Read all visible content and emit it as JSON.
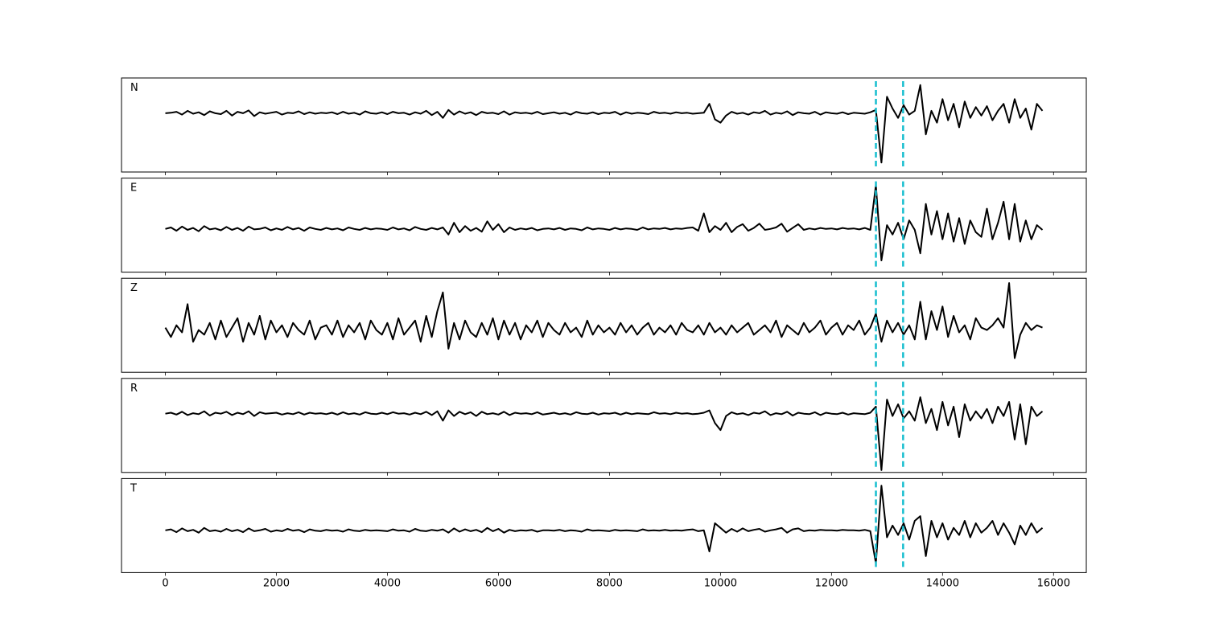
{
  "chart_data": {
    "type": "line",
    "x": [
      0,
      100,
      200,
      300,
      400,
      500,
      600,
      700,
      800,
      900,
      1000,
      1100,
      1200,
      1300,
      1400,
      1500,
      1600,
      1700,
      1800,
      1900,
      2000,
      2100,
      2200,
      2300,
      2400,
      2500,
      2600,
      2700,
      2800,
      2900,
      3000,
      3100,
      3200,
      3300,
      3400,
      3500,
      3600,
      3700,
      3800,
      3900,
      4000,
      4100,
      4200,
      4300,
      4400,
      4500,
      4600,
      4700,
      4800,
      4900,
      5000,
      5100,
      5200,
      5300,
      5400,
      5500,
      5600,
      5700,
      5800,
      5900,
      6000,
      6100,
      6200,
      6300,
      6400,
      6500,
      6600,
      6700,
      6800,
      6900,
      7000,
      7100,
      7200,
      7300,
      7400,
      7500,
      7600,
      7700,
      7800,
      7900,
      8000,
      8100,
      8200,
      8300,
      8400,
      8500,
      8600,
      8700,
      8800,
      8900,
      9000,
      9100,
      9200,
      9300,
      9400,
      9500,
      9600,
      9700,
      9800,
      9900,
      10000,
      10100,
      10200,
      10300,
      10400,
      10500,
      10600,
      10700,
      10800,
      10900,
      11000,
      11100,
      11200,
      11300,
      11400,
      11500,
      11600,
      11700,
      11800,
      11900,
      12000,
      12100,
      12200,
      12300,
      12400,
      12500,
      12600,
      12700,
      12800,
      12900,
      13000,
      13100,
      13200,
      13300,
      13400,
      13500,
      13600,
      13700,
      13800,
      13900,
      14000,
      14100,
      14200,
      14300,
      14400,
      14500,
      14600,
      14700,
      14800,
      14900,
      15000,
      15100,
      15200,
      15300,
      15400,
      15500,
      15600,
      15700,
      15800
    ],
    "series": [
      {
        "name": "N",
        "color": "#000000",
        "values": [
          0.25,
          0.26,
          0.28,
          0.22,
          0.3,
          0.24,
          0.27,
          0.21,
          0.29,
          0.25,
          0.23,
          0.3,
          0.2,
          0.28,
          0.25,
          0.31,
          0.19,
          0.27,
          0.24,
          0.26,
          0.28,
          0.22,
          0.26,
          0.25,
          0.29,
          0.23,
          0.27,
          0.24,
          0.26,
          0.25,
          0.27,
          0.23,
          0.28,
          0.24,
          0.26,
          0.22,
          0.29,
          0.25,
          0.24,
          0.27,
          0.23,
          0.28,
          0.25,
          0.26,
          0.22,
          0.27,
          0.24,
          0.3,
          0.21,
          0.28,
          0.15,
          0.32,
          0.22,
          0.29,
          0.24,
          0.27,
          0.21,
          0.28,
          0.25,
          0.26,
          0.23,
          0.29,
          0.22,
          0.27,
          0.25,
          0.26,
          0.24,
          0.28,
          0.23,
          0.25,
          0.27,
          0.24,
          0.26,
          0.22,
          0.28,
          0.25,
          0.24,
          0.27,
          0.23,
          0.26,
          0.25,
          0.28,
          0.22,
          0.27,
          0.24,
          0.26,
          0.25,
          0.23,
          0.28,
          0.25,
          0.26,
          0.24,
          0.27,
          0.25,
          0.26,
          0.24,
          0.25,
          0.26,
          0.45,
          0.12,
          0.05,
          0.2,
          0.28,
          0.24,
          0.26,
          0.22,
          0.27,
          0.25,
          0.3,
          0.22,
          0.26,
          0.24,
          0.29,
          0.21,
          0.27,
          0.25,
          0.24,
          0.28,
          0.22,
          0.27,
          0.25,
          0.24,
          0.27,
          0.23,
          0.26,
          0.25,
          0.24,
          0.27,
          0.32,
          -0.8,
          0.6,
          0.35,
          0.15,
          0.42,
          0.22,
          0.3,
          0.85,
          -0.2,
          0.3,
          0.05,
          0.55,
          0.1,
          0.45,
          -0.05,
          0.5,
          0.15,
          0.38,
          0.2,
          0.4,
          0.1,
          0.3,
          0.45,
          0.05,
          0.55,
          0.15,
          0.35,
          -0.1,
          0.45,
          0.3
        ]
      },
      {
        "name": "E",
        "color": "#000000",
        "values": [
          -0.08,
          -0.05,
          -0.12,
          -0.03,
          -0.1,
          -0.06,
          -0.13,
          -0.02,
          -0.09,
          -0.07,
          -0.11,
          -0.04,
          -0.1,
          -0.06,
          -0.12,
          -0.03,
          -0.09,
          -0.08,
          -0.05,
          -0.11,
          -0.07,
          -0.1,
          -0.04,
          -0.09,
          -0.06,
          -0.12,
          -0.05,
          -0.08,
          -0.1,
          -0.06,
          -0.09,
          -0.07,
          -0.11,
          -0.05,
          -0.08,
          -0.1,
          -0.06,
          -0.09,
          -0.07,
          -0.08,
          -0.1,
          -0.05,
          -0.09,
          -0.07,
          -0.11,
          -0.04,
          -0.08,
          -0.1,
          -0.06,
          -0.09,
          -0.05,
          -0.2,
          0.05,
          -0.15,
          -0.02,
          -0.12,
          -0.06,
          -0.14,
          0.08,
          -0.1,
          0.02,
          -0.15,
          -0.05,
          -0.1,
          -0.07,
          -0.09,
          -0.06,
          -0.11,
          -0.08,
          -0.07,
          -0.09,
          -0.06,
          -0.1,
          -0.07,
          -0.08,
          -0.11,
          -0.05,
          -0.09,
          -0.07,
          -0.08,
          -0.1,
          -0.06,
          -0.09,
          -0.07,
          -0.08,
          -0.1,
          -0.05,
          -0.09,
          -0.07,
          -0.08,
          -0.06,
          -0.09,
          -0.07,
          -0.08,
          -0.06,
          -0.05,
          -0.12,
          0.25,
          -0.15,
          -0.02,
          -0.1,
          0.05,
          -0.15,
          -0.04,
          0.02,
          -0.12,
          -0.06,
          0.03,
          -0.1,
          -0.08,
          -0.05,
          0.03,
          -0.14,
          -0.06,
          0.02,
          -0.1,
          -0.07,
          -0.09,
          -0.06,
          -0.08,
          -0.07,
          -0.09,
          -0.06,
          -0.08,
          -0.07,
          -0.09,
          -0.06,
          -0.1,
          0.85,
          -0.75,
          0.0,
          -0.2,
          0.05,
          -0.3,
          0.1,
          -0.1,
          -0.6,
          0.45,
          -0.2,
          0.3,
          -0.3,
          0.25,
          -0.35,
          0.15,
          -0.4,
          0.1,
          -0.15,
          -0.25,
          0.35,
          -0.3,
          0.05,
          0.5,
          -0.3,
          0.45,
          -0.35,
          0.1,
          -0.3,
          0.0,
          -0.1
        ]
      },
      {
        "name": "Z",
        "color": "#000000",
        "values": [
          -0.05,
          -0.25,
          0.0,
          -0.15,
          0.45,
          -0.35,
          -0.1,
          -0.2,
          0.05,
          -0.3,
          0.1,
          -0.25,
          -0.05,
          0.15,
          -0.35,
          0.05,
          -0.2,
          0.2,
          -0.3,
          0.1,
          -0.15,
          0.0,
          -0.25,
          0.05,
          -0.1,
          -0.2,
          0.1,
          -0.3,
          -0.05,
          0.0,
          -0.2,
          0.1,
          -0.25,
          0.0,
          -0.15,
          0.05,
          -0.3,
          0.1,
          -0.1,
          -0.2,
          0.05,
          -0.3,
          0.15,
          -0.2,
          -0.05,
          0.1,
          -0.35,
          0.2,
          -0.25,
          0.3,
          0.7,
          -0.5,
          0.05,
          -0.3,
          0.1,
          -0.15,
          -0.25,
          0.05,
          -0.2,
          0.15,
          -0.3,
          0.1,
          -0.2,
          0.05,
          -0.3,
          0.0,
          -0.15,
          0.1,
          -0.25,
          0.05,
          -0.1,
          -0.2,
          0.05,
          -0.15,
          -0.05,
          -0.25,
          0.1,
          -0.2,
          0.0,
          -0.15,
          -0.05,
          -0.2,
          0.05,
          -0.15,
          0.0,
          -0.2,
          -0.05,
          0.05,
          -0.2,
          -0.05,
          -0.15,
          0.0,
          -0.2,
          0.05,
          -0.1,
          -0.15,
          0.0,
          -0.2,
          0.05,
          -0.15,
          -0.05,
          -0.2,
          0.0,
          -0.15,
          -0.05,
          0.05,
          -0.2,
          -0.1,
          0.0,
          -0.15,
          0.1,
          -0.25,
          0.0,
          -0.1,
          -0.2,
          0.05,
          -0.15,
          -0.05,
          0.1,
          -0.2,
          -0.05,
          0.05,
          -0.2,
          0.0,
          -0.1,
          0.1,
          -0.2,
          -0.05,
          0.25,
          -0.35,
          0.1,
          -0.15,
          0.05,
          -0.2,
          0.0,
          -0.3,
          0.5,
          -0.3,
          0.3,
          -0.1,
          0.4,
          -0.25,
          0.2,
          -0.15,
          0.0,
          -0.3,
          0.15,
          -0.05,
          -0.1,
          0.0,
          0.15,
          -0.05,
          0.9,
          -0.7,
          -0.2,
          0.05,
          -0.1,
          0.0,
          -0.05
        ]
      },
      {
        "name": "R",
        "color": "#000000",
        "values": [
          0.25,
          0.27,
          0.23,
          0.29,
          0.22,
          0.26,
          0.24,
          0.3,
          0.21,
          0.27,
          0.25,
          0.29,
          0.22,
          0.27,
          0.24,
          0.3,
          0.2,
          0.28,
          0.25,
          0.26,
          0.27,
          0.23,
          0.26,
          0.24,
          0.28,
          0.23,
          0.27,
          0.25,
          0.26,
          0.24,
          0.27,
          0.23,
          0.28,
          0.24,
          0.26,
          0.23,
          0.28,
          0.25,
          0.24,
          0.27,
          0.24,
          0.28,
          0.25,
          0.26,
          0.23,
          0.27,
          0.24,
          0.29,
          0.22,
          0.3,
          0.1,
          0.32,
          0.2,
          0.29,
          0.24,
          0.28,
          0.2,
          0.29,
          0.24,
          0.26,
          0.23,
          0.29,
          0.22,
          0.27,
          0.25,
          0.26,
          0.24,
          0.28,
          0.23,
          0.25,
          0.27,
          0.24,
          0.26,
          0.23,
          0.28,
          0.25,
          0.24,
          0.27,
          0.23,
          0.26,
          0.25,
          0.27,
          0.23,
          0.27,
          0.24,
          0.26,
          0.25,
          0.24,
          0.28,
          0.25,
          0.26,
          0.24,
          0.27,
          0.25,
          0.26,
          0.24,
          0.25,
          0.27,
          0.32,
          0.05,
          -0.1,
          0.2,
          0.28,
          0.24,
          0.26,
          0.22,
          0.27,
          0.25,
          0.3,
          0.22,
          0.26,
          0.24,
          0.29,
          0.21,
          0.27,
          0.25,
          0.24,
          0.28,
          0.22,
          0.27,
          0.25,
          0.24,
          0.27,
          0.23,
          0.26,
          0.25,
          0.24,
          0.27,
          0.4,
          -0.95,
          0.55,
          0.2,
          0.45,
          0.15,
          0.3,
          0.1,
          0.6,
          0.05,
          0.35,
          -0.1,
          0.5,
          0.0,
          0.4,
          -0.25,
          0.45,
          0.1,
          0.3,
          0.15,
          0.35,
          0.05,
          0.4,
          0.2,
          0.5,
          -0.3,
          0.45,
          -0.4,
          0.4,
          0.2,
          0.3
        ]
      },
      {
        "name": "T",
        "color": "#000000",
        "values": [
          -0.1,
          -0.08,
          -0.14,
          -0.06,
          -0.12,
          -0.09,
          -0.15,
          -0.05,
          -0.12,
          -0.1,
          -0.13,
          -0.07,
          -0.12,
          -0.09,
          -0.14,
          -0.06,
          -0.12,
          -0.1,
          -0.07,
          -0.13,
          -0.1,
          -0.12,
          -0.07,
          -0.11,
          -0.09,
          -0.14,
          -0.08,
          -0.11,
          -0.12,
          -0.09,
          -0.11,
          -0.1,
          -0.13,
          -0.08,
          -0.11,
          -0.12,
          -0.09,
          -0.11,
          -0.1,
          -0.11,
          -0.12,
          -0.08,
          -0.11,
          -0.1,
          -0.13,
          -0.07,
          -0.11,
          -0.12,
          -0.09,
          -0.11,
          -0.08,
          -0.15,
          -0.06,
          -0.13,
          -0.08,
          -0.12,
          -0.09,
          -0.14,
          -0.05,
          -0.12,
          -0.07,
          -0.15,
          -0.09,
          -0.12,
          -0.1,
          -0.11,
          -0.09,
          -0.13,
          -0.1,
          -0.1,
          -0.11,
          -0.09,
          -0.12,
          -0.1,
          -0.11,
          -0.13,
          -0.08,
          -0.11,
          -0.1,
          -0.11,
          -0.12,
          -0.09,
          -0.11,
          -0.1,
          -0.11,
          -0.12,
          -0.08,
          -0.11,
          -0.1,
          -0.11,
          -0.09,
          -0.11,
          -0.1,
          -0.11,
          -0.09,
          -0.08,
          -0.12,
          -0.1,
          -0.55,
          0.05,
          -0.05,
          -0.15,
          -0.07,
          -0.13,
          -0.06,
          -0.12,
          -0.09,
          -0.07,
          -0.13,
          -0.1,
          -0.08,
          -0.05,
          -0.15,
          -0.08,
          -0.06,
          -0.12,
          -0.1,
          -0.11,
          -0.09,
          -0.1,
          -0.1,
          -0.11,
          -0.09,
          -0.1,
          -0.1,
          -0.11,
          -0.09,
          -0.12,
          -0.8,
          0.85,
          -0.25,
          0.0,
          -0.2,
          0.05,
          -0.3,
          0.1,
          0.2,
          -0.65,
          0.1,
          -0.25,
          0.05,
          -0.3,
          -0.05,
          -0.2,
          0.1,
          -0.25,
          0.05,
          -0.15,
          -0.05,
          0.1,
          -0.2,
          0.05,
          -0.15,
          -0.4,
          0.0,
          -0.2,
          0.05,
          -0.15,
          -0.05
        ]
      }
    ],
    "xlim": [
      -790,
      16590
    ],
    "xticks": [
      0,
      2000,
      4000,
      6000,
      8000,
      10000,
      12000,
      14000,
      16000
    ],
    "ylim": [
      -1,
      1
    ],
    "vlines": [
      12800,
      13290
    ],
    "vline_color": "#17becf"
  }
}
